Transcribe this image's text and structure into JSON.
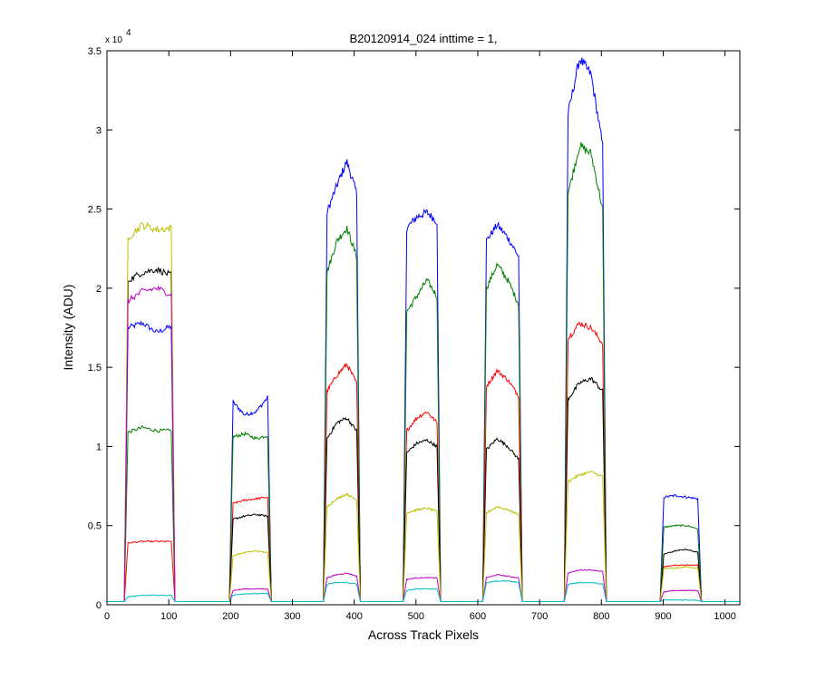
{
  "chart_data": {
    "type": "line",
    "title": "B20120914_024 inttime = 1,",
    "xlabel": "Across Track Pixels",
    "ylabel": "Intensity (ADU)",
    "xlim": [
      0,
      1024
    ],
    "ylim": [
      0,
      35000
    ],
    "x_ticks": [
      "0",
      "100",
      "200",
      "300",
      "400",
      "500",
      "600",
      "700",
      "800",
      "900",
      "1000"
    ],
    "y_ticks": [
      "0",
      "0.5",
      "1",
      "1.5",
      "2",
      "2.5",
      "3",
      "3.5"
    ],
    "y_multiplier_base": "x 10",
    "y_multiplier_exp": "4",
    "grid": false,
    "legend": "none",
    "baseline": 200,
    "segments": [
      {
        "x0": 30,
        "x1": 108
      },
      {
        "x0": 200,
        "x1": 264
      },
      {
        "x0": 352,
        "x1": 408
      },
      {
        "x0": 481,
        "x1": 538
      },
      {
        "x0": 610,
        "x1": 670
      },
      {
        "x0": 742,
        "x1": 806
      },
      {
        "x0": 897,
        "x1": 960
      }
    ],
    "series": [
      {
        "color": "#0000ff",
        "levels": [
          [
            17500,
            17800,
            17200,
            17600
          ],
          [
            12800,
            12000,
            12200,
            13100
          ],
          [
            24800,
            26500,
            28000,
            26000
          ],
          [
            23800,
            24500,
            24800,
            24200
          ],
          [
            23000,
            24000,
            23200,
            22000
          ],
          [
            31000,
            34500,
            33500,
            29000
          ],
          [
            6800,
            6900,
            6800,
            6700
          ]
        ]
      },
      {
        "color": "#007f00",
        "levels": [
          [
            10900,
            11200,
            11000,
            11000
          ],
          [
            10600,
            10800,
            10500,
            10700
          ],
          [
            21000,
            23000,
            23800,
            22000
          ],
          [
            18500,
            19500,
            20500,
            19500
          ],
          [
            20000,
            21500,
            20500,
            19000
          ],
          [
            26000,
            29000,
            28500,
            25000
          ],
          [
            4900,
            5000,
            5000,
            4800
          ]
        ]
      },
      {
        "color": "#ff0000",
        "levels": [
          [
            3900,
            4000,
            4000,
            4000
          ],
          [
            6400,
            6600,
            6700,
            6800
          ],
          [
            13500,
            14500,
            15200,
            14000
          ],
          [
            11000,
            11800,
            12200,
            11500
          ],
          [
            13800,
            14800,
            14200,
            13200
          ],
          [
            16800,
            17800,
            17500,
            16500
          ],
          [
            2400,
            2500,
            2500,
            2500
          ]
        ]
      },
      {
        "color": "#000000",
        "levels": [
          [
            20500,
            21000,
            21200,
            20800
          ],
          [
            5400,
            5600,
            5700,
            5600
          ],
          [
            10500,
            11500,
            11800,
            11000
          ],
          [
            9600,
            10200,
            10400,
            10000
          ],
          [
            9800,
            10500,
            10000,
            9200
          ],
          [
            13000,
            14000,
            14300,
            13500
          ],
          [
            3200,
            3400,
            3500,
            3300
          ]
        ]
      },
      {
        "color": "#bfbf00",
        "levels": [
          [
            23200,
            24000,
            23700,
            23800
          ],
          [
            3100,
            3300,
            3400,
            3300
          ],
          [
            6200,
            6700,
            7000,
            6600
          ],
          [
            5800,
            6000,
            6100,
            5900
          ],
          [
            5800,
            6200,
            6000,
            5700
          ],
          [
            7800,
            8200,
            8400,
            8100
          ],
          [
            2300,
            2300,
            2400,
            2300
          ]
        ]
      },
      {
        "color": "#bf00bf",
        "levels": [
          [
            19200,
            19800,
            20000,
            19600
          ],
          [
            900,
            1000,
            1000,
            1000
          ],
          [
            1700,
            1900,
            2000,
            1800
          ],
          [
            1600,
            1700,
            1700,
            1700
          ],
          [
            1700,
            1900,
            1800,
            1700
          ],
          [
            2000,
            2200,
            2200,
            2100
          ],
          [
            800,
            900,
            900,
            900
          ]
        ]
      },
      {
        "color": "#00bfbf",
        "levels": [
          [
            500,
            600,
            600,
            600
          ],
          [
            600,
            700,
            700,
            700
          ],
          [
            1300,
            1400,
            1400,
            1300
          ],
          [
            900,
            1000,
            1000,
            1000
          ],
          [
            1400,
            1500,
            1500,
            1400
          ],
          [
            1300,
            1400,
            1400,
            1300
          ],
          [
            300,
            300,
            300,
            300
          ]
        ]
      }
    ]
  }
}
